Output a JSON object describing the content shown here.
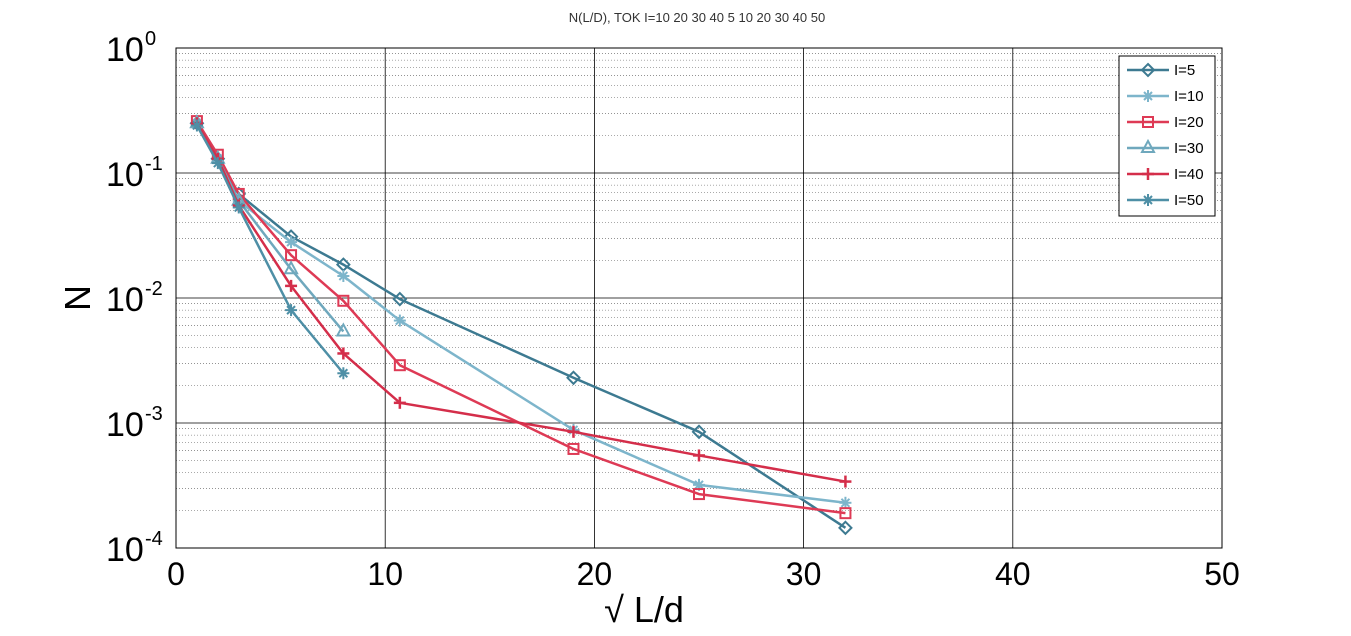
{
  "chart_data": {
    "type": "line",
    "title": "N(L/D), TOK I=10  20  30  40   5  10  20  30  40  50",
    "xlabel": "√ L/d",
    "ylabel": "N",
    "xlim": [
      0,
      50
    ],
    "ylim": [
      0.0001,
      1
    ],
    "yscale": "log",
    "grid": "on (major solid, minor dotted)",
    "legend_position": "top-right",
    "xticks": [
      "0",
      "10",
      "20",
      "30",
      "40",
      "50"
    ],
    "yticks": [
      {
        "base": "10",
        "exp": "0"
      },
      {
        "base": "10",
        "exp": "-1"
      },
      {
        "base": "10",
        "exp": "-2"
      },
      {
        "base": "10",
        "exp": "-3"
      },
      {
        "base": "10",
        "exp": "-4"
      }
    ],
    "series": [
      {
        "name": "I=5",
        "color": "#3d7a91",
        "marker": "diamond",
        "x": [
          1,
          2,
          3,
          5.5,
          8,
          10.7,
          19,
          25,
          32
        ],
        "y": [
          0.25,
          0.13,
          0.068,
          0.031,
          0.0185,
          0.0098,
          0.0023,
          0.00085,
          0.000145
        ]
      },
      {
        "name": "I=10",
        "color": "#7db5cb",
        "marker": "asterisk",
        "x": [
          1,
          2,
          3,
          5.5,
          8,
          10.7,
          19,
          25,
          32
        ],
        "y": [
          0.25,
          0.13,
          0.06,
          0.028,
          0.015,
          0.0066,
          0.00088,
          0.00032,
          0.00023
        ]
      },
      {
        "name": "I=20",
        "color": "#de3a55",
        "marker": "square",
        "x": [
          1,
          2,
          3,
          5.5,
          8,
          10.7,
          19,
          25,
          32
        ],
        "y": [
          0.26,
          0.14,
          0.068,
          0.022,
          0.0095,
          0.0029,
          0.00062,
          0.00027,
          0.00019
        ]
      },
      {
        "name": "I=30",
        "color": "#6fa8bd",
        "marker": "triangle",
        "x": [
          1,
          2,
          3,
          5.5,
          8
        ],
        "y": [
          0.25,
          0.13,
          0.06,
          0.017,
          0.0054
        ]
      },
      {
        "name": "I=40",
        "color": "#d42e4a",
        "marker": "plus",
        "x": [
          1,
          2,
          3,
          5.5,
          8,
          10.7,
          19,
          25,
          32
        ],
        "y": [
          0.25,
          0.13,
          0.055,
          0.0125,
          0.0036,
          0.00145,
          0.00085,
          0.00055,
          0.00034
        ]
      },
      {
        "name": "I=50",
        "color": "#4e8fa6",
        "marker": "asterisk",
        "x": [
          1,
          2,
          3,
          5.5,
          8
        ],
        "y": [
          0.24,
          0.12,
          0.053,
          0.008,
          0.0025
        ]
      }
    ]
  }
}
